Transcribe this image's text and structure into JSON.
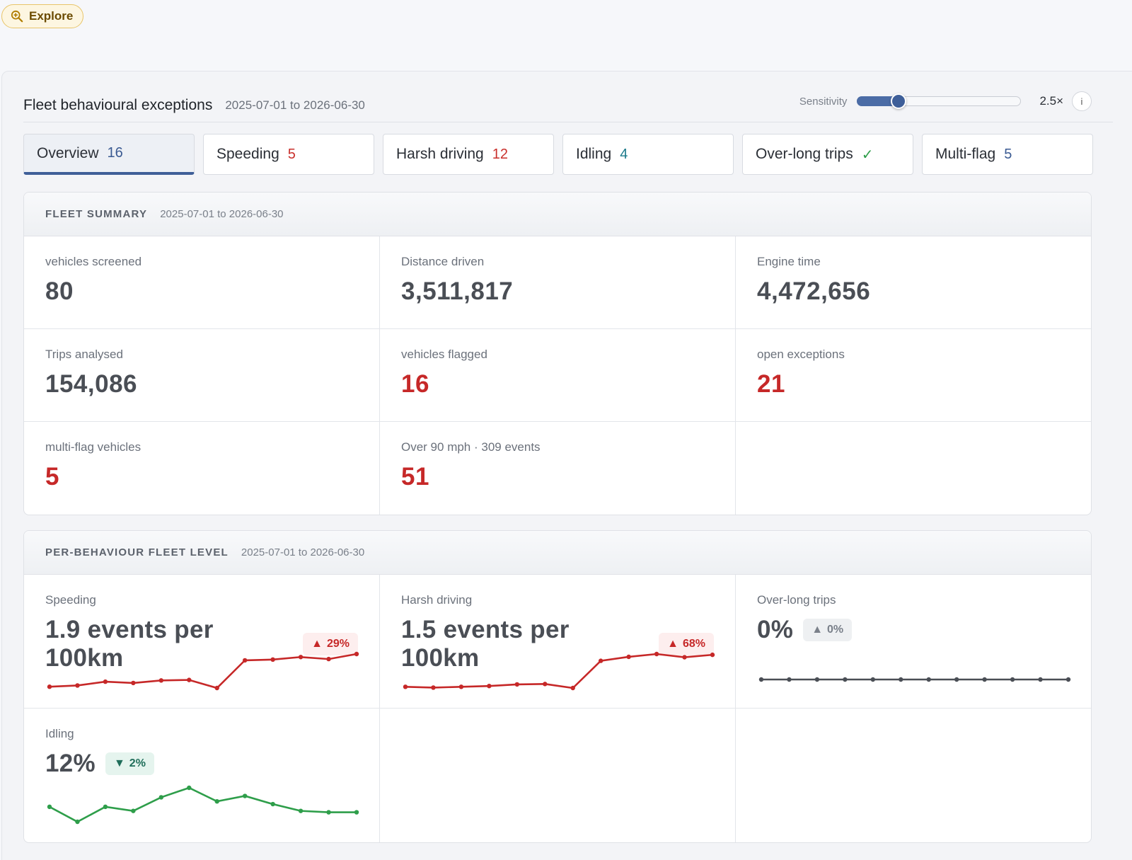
{
  "explore": {
    "label": "Explore",
    "icon": "zoom-in-icon"
  },
  "header": {
    "title": "Fleet behavioural exceptions",
    "range": "2025-07-01 to 2026-06-30",
    "sensitivity": {
      "label": "Sensitivity",
      "value_label": "2.5×",
      "level": 0.25,
      "info": "i"
    }
  },
  "tabs": [
    {
      "label": "Overview",
      "count": "16",
      "count_color": "#3a5a92",
      "active": true
    },
    {
      "label": "Speeding",
      "count": "5",
      "count_color": "#c9302c"
    },
    {
      "label": "Harsh driving",
      "count": "12",
      "count_color": "#c9302c"
    },
    {
      "label": "Idling",
      "count": "4",
      "count_color": "#1b7a8a"
    },
    {
      "label": "Over-long trips",
      "count": "✓",
      "count_color": "#2e9e4a"
    },
    {
      "label": "Multi-flag",
      "count": "5",
      "count_color": "#3a5a92"
    }
  ],
  "fleet_summary": {
    "title": "FLEET SUMMARY",
    "range": "2025-07-01 to 2026-06-30",
    "stats": [
      {
        "label": "vehicles screened",
        "value": "80",
        "alert": false
      },
      {
        "label": "Distance driven",
        "value": "3,511,817",
        "alert": false
      },
      {
        "label": "Engine time",
        "value": "4,472,656",
        "alert": false
      },
      {
        "label": "Trips analysed",
        "value": "154,086",
        "alert": false
      },
      {
        "label": "vehicles flagged",
        "value": "16",
        "alert": true
      },
      {
        "label": "open exceptions",
        "value": "21",
        "alert": true
      },
      {
        "label": "multi-flag vehicles",
        "value": "5",
        "alert": true
      },
      {
        "label": "Over 90 mph · 309 events",
        "value": "51",
        "alert": true
      },
      {
        "label": "",
        "value": "",
        "alert": false
      }
    ]
  },
  "behaviour": {
    "title": "PER-BEHAVIOUR FLEET LEVEL",
    "range": "2025-07-01 to 2026-06-30",
    "items": [
      {
        "label": "Speeding",
        "value": "1.9 events per 100km",
        "delta": "29%",
        "direction": "up",
        "badge_style": "up-red",
        "color": "#c62828",
        "trend": [
          1.2,
          1.25,
          1.4,
          1.35,
          1.45,
          1.47,
          1.15,
          2.25,
          2.28,
          2.38,
          2.3,
          2.5
        ]
      },
      {
        "label": "Harsh driving",
        "value": "1.5 events per 100km",
        "delta": "68%",
        "direction": "up",
        "badge_style": "up-red",
        "color": "#c62828",
        "trend": [
          0.9,
          0.88,
          0.9,
          0.92,
          0.96,
          0.97,
          0.87,
          1.55,
          1.65,
          1.72,
          1.64,
          1.7
        ]
      },
      {
        "label": "Over-long trips",
        "value": "0%",
        "delta": "0%",
        "direction": "up",
        "badge_style": "flat",
        "color": "#4a4e55",
        "trend": [
          0,
          0,
          0,
          0,
          0,
          0,
          0,
          0,
          0,
          0,
          0,
          0
        ]
      },
      {
        "label": "Idling",
        "value": "12%",
        "delta": "2%",
        "direction": "down",
        "badge_style": "down-green",
        "color": "#2e9e4a",
        "trend": [
          12.4,
          11.3,
          12.4,
          12.1,
          13.1,
          13.8,
          12.8,
          13.2,
          12.6,
          12.1,
          12.0,
          12.0
        ]
      },
      {
        "label": "",
        "value": "",
        "delta": "",
        "direction": "",
        "badge_style": "",
        "color": "",
        "trend": []
      },
      {
        "label": "",
        "value": "",
        "delta": "",
        "direction": "",
        "badge_style": "",
        "color": "",
        "trend": []
      }
    ]
  }
}
